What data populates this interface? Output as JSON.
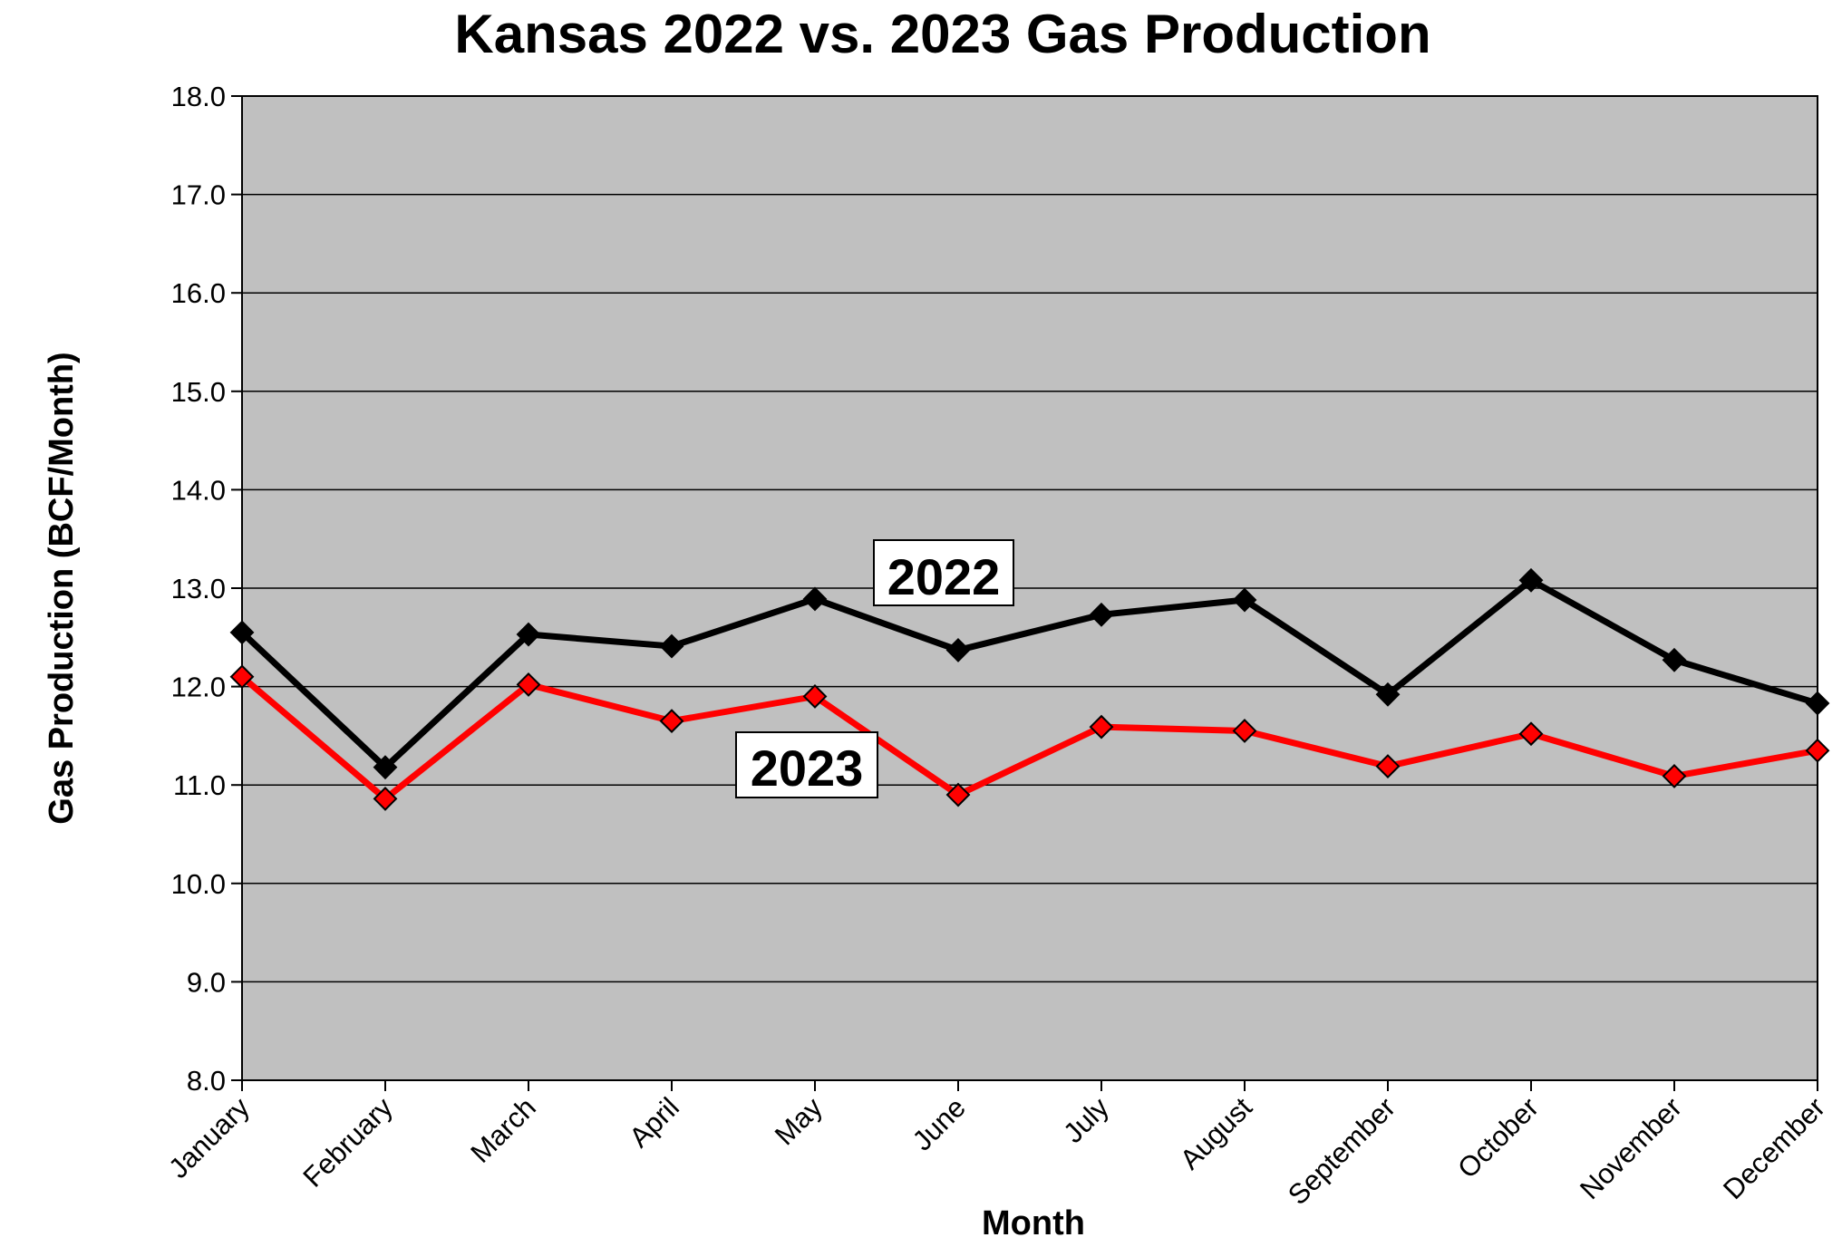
{
  "chart_data": {
    "type": "line",
    "title": "Kansas 2022 vs. 2023 Gas Production",
    "xlabel": "Month",
    "ylabel": "Gas Production (BCF/Month)",
    "ylim": [
      8.0,
      18.0
    ],
    "yticks": [
      "8.0",
      "9.0",
      "10.0",
      "11.0",
      "12.0",
      "13.0",
      "14.0",
      "15.0",
      "16.0",
      "17.0",
      "18.0"
    ],
    "categories": [
      "January",
      "February",
      "March",
      "April",
      "May",
      "June",
      "July",
      "August",
      "September",
      "October",
      "November",
      "December"
    ],
    "grid": true,
    "plot_background": "#c0c0c0",
    "series": [
      {
        "name": "2022",
        "color": "#000000",
        "marker": "diamond",
        "values": [
          12.55,
          11.18,
          12.53,
          12.41,
          12.89,
          12.37,
          12.73,
          12.88,
          11.92,
          13.08,
          12.27,
          11.83
        ]
      },
      {
        "name": "2023",
        "color": "#ff0000",
        "marker": "diamond",
        "values": [
          12.1,
          10.86,
          12.02,
          11.65,
          11.9,
          10.9,
          11.59,
          11.55,
          11.19,
          11.52,
          11.09,
          11.35
        ]
      }
    ]
  }
}
